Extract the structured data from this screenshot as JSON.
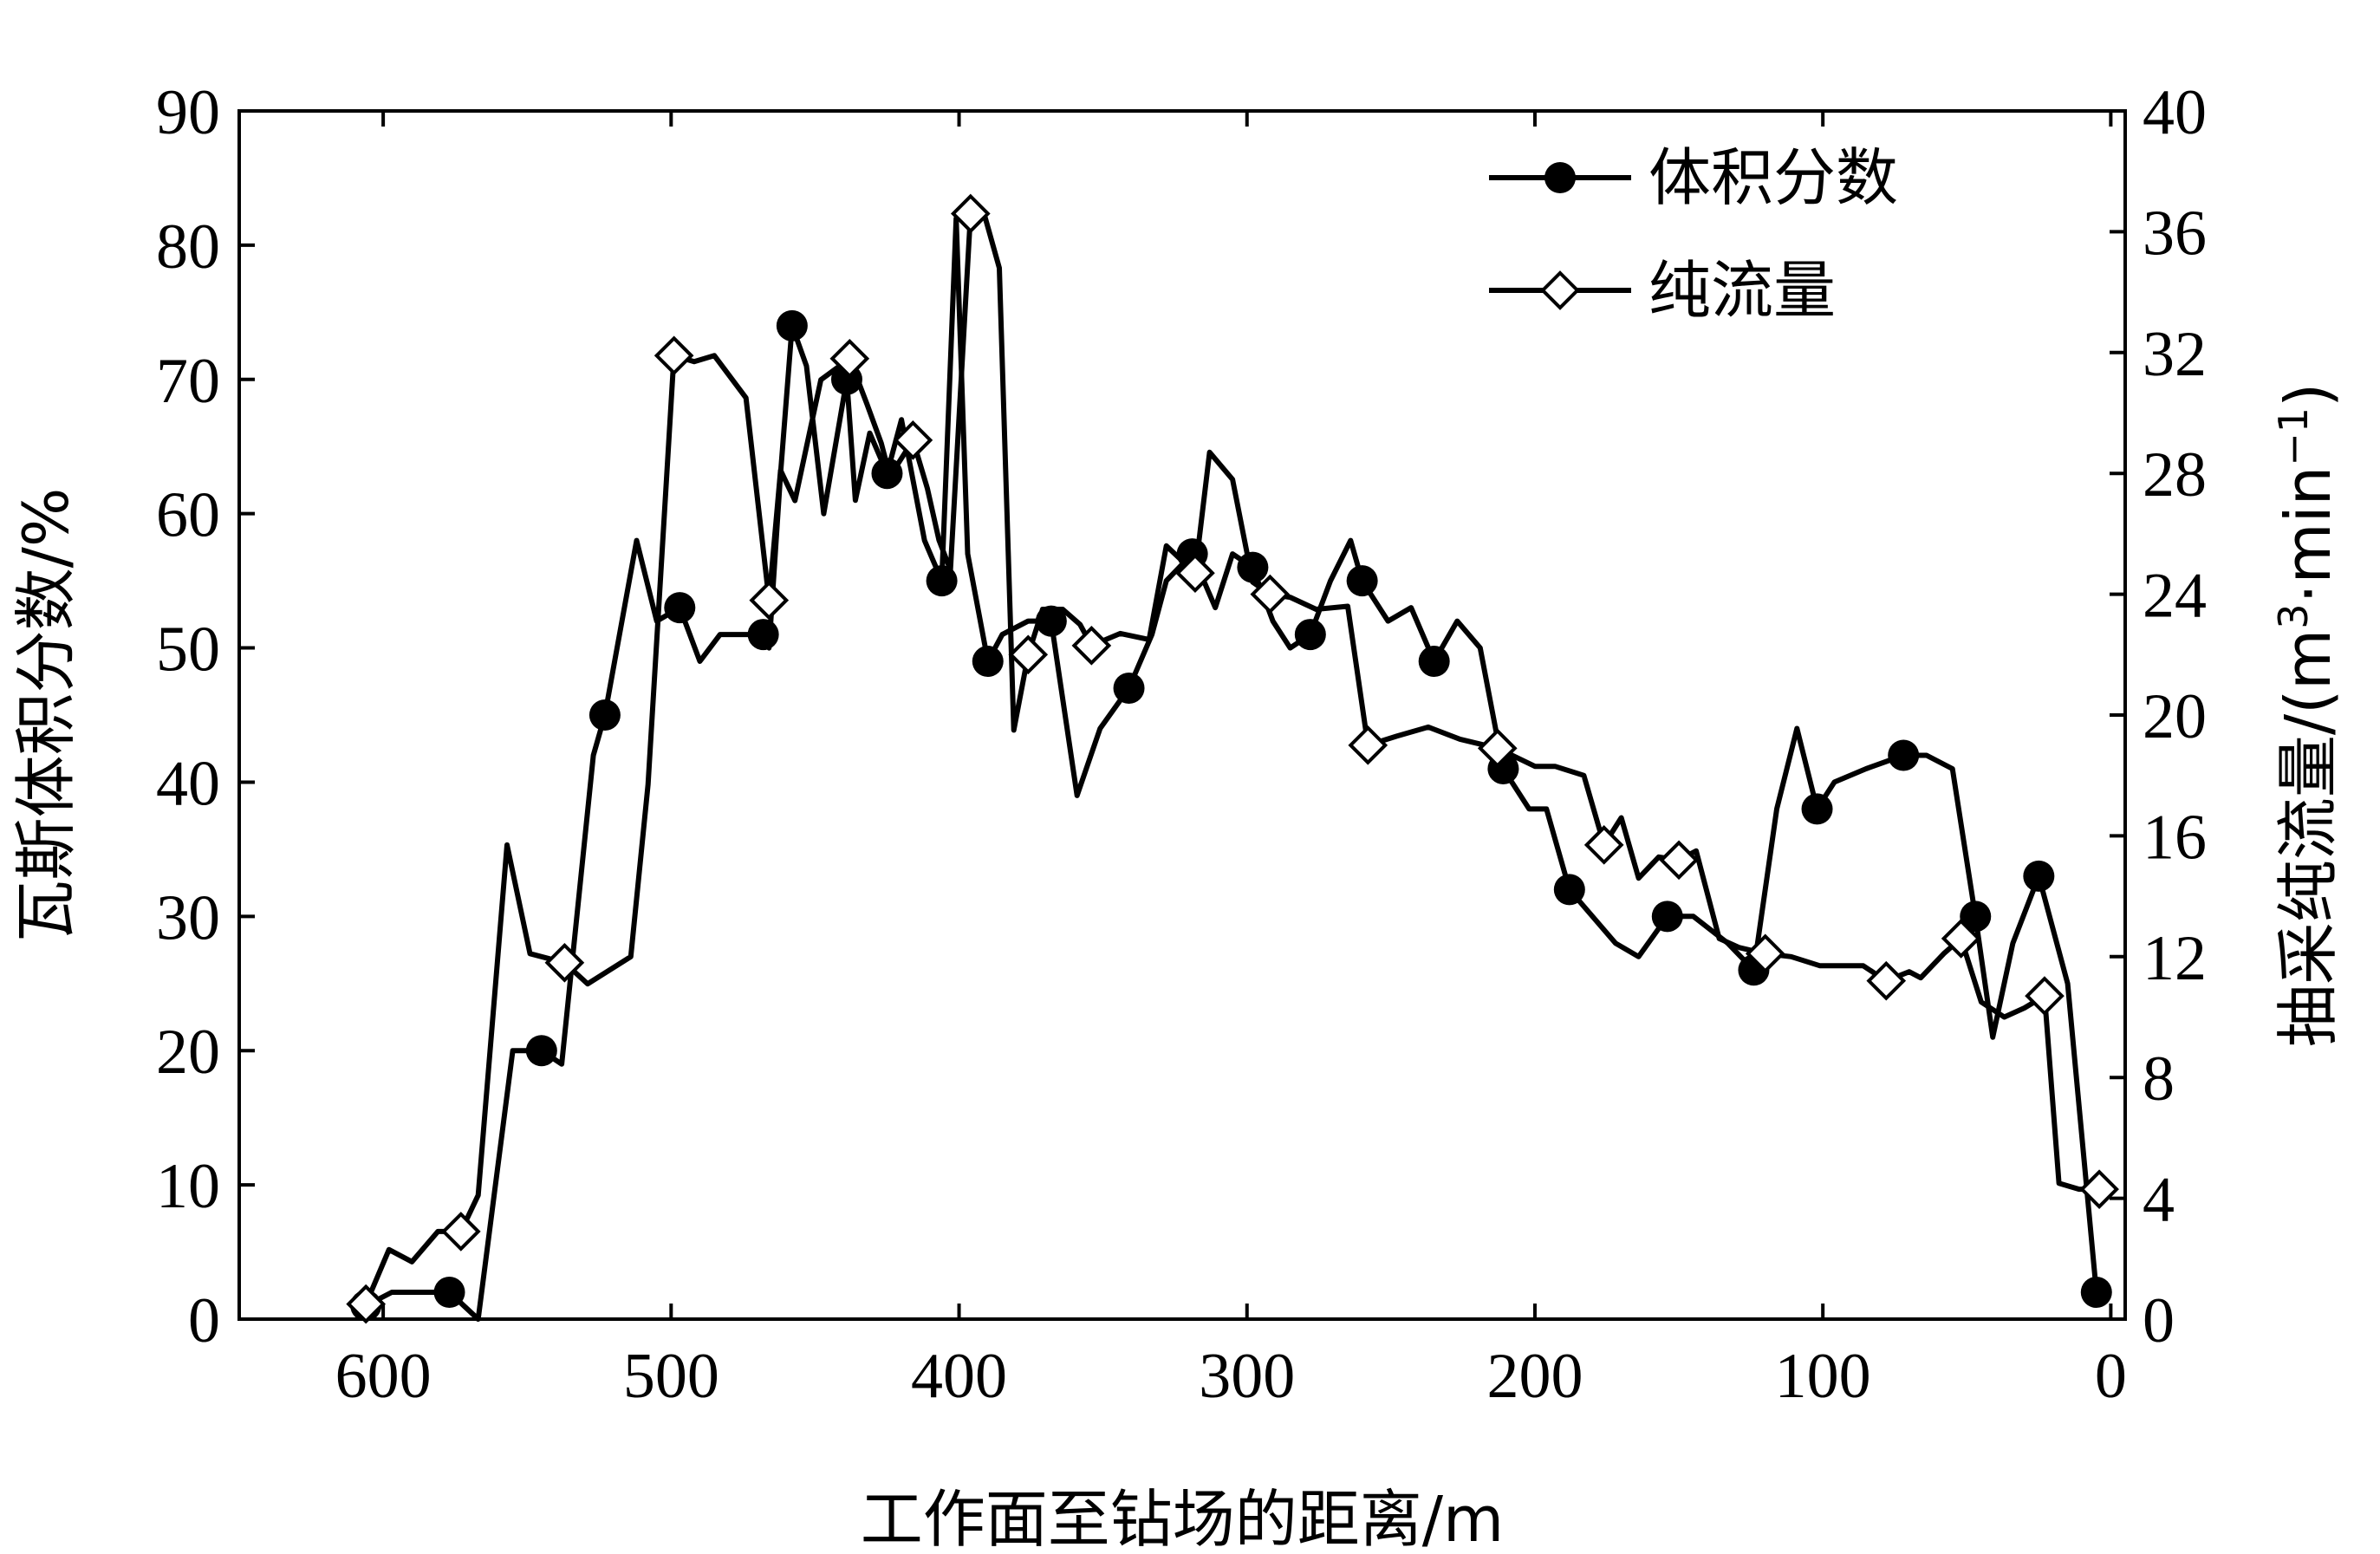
{
  "chart_data": {
    "type": "line",
    "xlabel": "工作面至钻场的距离/m",
    "ylabel_left": "瓦斯体积分数/%",
    "ylabel_right_main": "抽采纯流量/(m",
    "ylabel_right_sup1": "3",
    "ylabel_right_mid": "·min",
    "ylabel_right_sup2": "−1",
    "ylabel_right_end": ")",
    "xlim": [
      650,
      -5
    ],
    "ylim_left": [
      0,
      90
    ],
    "ylim_right": [
      0,
      40
    ],
    "x_ticks": [
      "600",
      "500",
      "400",
      "300",
      "200",
      "100",
      "0"
    ],
    "y_left_ticks": [
      "0",
      "10",
      "20",
      "30",
      "40",
      "50",
      "60",
      "70",
      "80",
      "90"
    ],
    "y_right_ticks": [
      "0",
      "4",
      "8",
      "12",
      "16",
      "20",
      "24",
      "28",
      "32",
      "36",
      "40"
    ],
    "legend_position": "top-right",
    "series": [
      {
        "name": "体积分数",
        "axis": "left",
        "marker": "circle",
        "x": [
          606,
          597,
          587,
          577,
          567,
          555,
          545,
          538,
          527,
          523,
          512,
          505,
          497,
          490,
          483,
          468,
          466,
          462,
          458,
          453,
          447,
          439,
          436,
          431,
          425,
          420,
          412,
          406,
          401,
          397,
          390,
          385,
          376,
          368,
          359,
          351,
          341,
          333,
          328,
          319,
          311,
          305,
          298,
          291,
          285,
          278,
          271,
          264,
          260,
          251,
          243,
          235,
          227,
          219,
          211,
          202,
          196,
          188,
          172,
          164,
          154,
          145,
          133,
          124,
          116,
          109,
          102,
          96,
          85,
          72,
          64,
          55,
          47,
          41,
          34,
          25,
          15,
          5
        ],
        "y": [
          1,
          2,
          2,
          2,
          0,
          20,
          20,
          19,
          42,
          45,
          58,
          52,
          53,
          49,
          51,
          51,
          50,
          63,
          74,
          71,
          60,
          70,
          61,
          66,
          63,
          67,
          58,
          55,
          82,
          57,
          49,
          51,
          52,
          52,
          39,
          44,
          47,
          51,
          55,
          57,
          53,
          57,
          56,
          52,
          50,
          51,
          55,
          58,
          55,
          52,
          53,
          49,
          52,
          50,
          41,
          38,
          38,
          32,
          28,
          27,
          30,
          30,
          28,
          26,
          38,
          44,
          38,
          40,
          41,
          42,
          42,
          41,
          30,
          21,
          28,
          33,
          25,
          2
        ]
      },
      {
        "name": "纯流量",
        "axis": "right",
        "marker": "diamond",
        "x": [
          606,
          598,
          590,
          581,
          573,
          567,
          557,
          549,
          537,
          529,
          514,
          508,
          499,
          492,
          485,
          474,
          466,
          462,
          457,
          448,
          438,
          432,
          427,
          424,
          416,
          411,
          407,
          403,
          396,
          391,
          386,
          381,
          376,
          371,
          364,
          358,
          354,
          344,
          334,
          328,
          318,
          313,
          305,
          298,
          292,
          285,
          276,
          265,
          258,
          248,
          237,
          226,
          213,
          200,
          193,
          183,
          176,
          170,
          164,
          157,
          150,
          144,
          136,
          129,
          120,
          111,
          101,
          86,
          78,
          70,
          66,
          58,
          52,
          45,
          37,
          30,
          23,
          18,
          11,
          4
        ],
        "y": [
          0.5,
          2.3,
          1.9,
          2.9,
          2.9,
          4.1,
          15.7,
          12.1,
          11.8,
          11.1,
          12.0,
          17.7,
          31.9,
          31.7,
          31.9,
          30.5,
          23.8,
          28.1,
          27.1,
          31.1,
          31.8,
          30.3,
          29.0,
          27.9,
          29.1,
          27.5,
          25.8,
          24.8,
          36.6,
          36.5,
          34.8,
          19.5,
          22.0,
          23.5,
          23.5,
          23.0,
          22.3,
          22.7,
          22.5,
          25.6,
          24.7,
          28.7,
          27.8,
          24.4,
          24.0,
          23.9,
          23.5,
          23.6,
          19.0,
          19.3,
          19.6,
          19.2,
          18.9,
          18.3,
          18.3,
          18.0,
          15.7,
          16.6,
          14.6,
          15.3,
          15.2,
          15.5,
          12.6,
          12.3,
          12.1,
          12.0,
          11.7,
          11.7,
          11.2,
          11.5,
          11.3,
          12.1,
          12.6,
          10.5,
          10.0,
          10.3,
          10.7,
          4.5,
          4.3,
          4.3
        ]
      }
    ]
  }
}
